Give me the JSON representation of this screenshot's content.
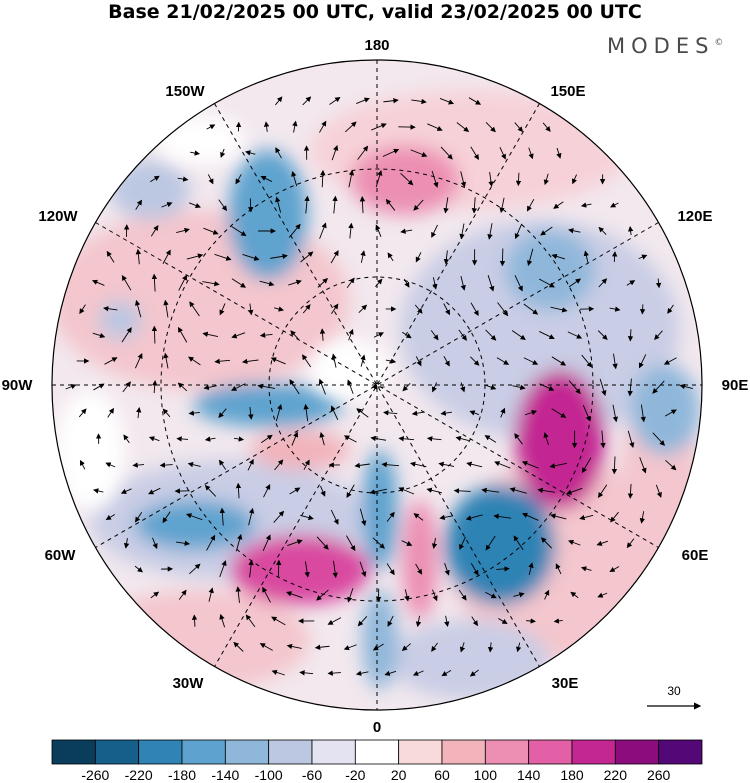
{
  "title": "Base 21/02/2025 00 UTC, valid 23/02/2025 00 UTC",
  "brand": "MODES",
  "brand_mark": "©",
  "longitude_labels": {
    "lon_180": "180",
    "lon_150E": "150E",
    "lon_120E": "120E",
    "lon_90E": "90E",
    "lon_60E": "60E",
    "lon_30E": "30E",
    "lon_0": "0",
    "lon_30W": "30W",
    "lon_60W": "60W",
    "lon_90W": "90W",
    "lon_120W": "120W",
    "lon_150W": "150W"
  },
  "reference_vector": {
    "label": "30"
  },
  "colorbar": {
    "colors": [
      "#0a3d5c",
      "#155f8a",
      "#2f83b5",
      "#5ea3cf",
      "#8fb7da",
      "#bcc7e2",
      "#e4e3f1",
      "#ffffff",
      "#f8dadb",
      "#f2b3bb",
      "#ec8fb2",
      "#e35fa6",
      "#c32892",
      "#8c0c7e",
      "#540776"
    ],
    "tick_labels": [
      "-260",
      "-220",
      "-180",
      "-140",
      "-100",
      "-60",
      "-20",
      "20",
      "60",
      "100",
      "140",
      "180",
      "220",
      "260"
    ]
  },
  "anomaly_fields": [
    {
      "value": -150,
      "color": "#5ea3cf",
      "desc": "negative"
    },
    {
      "value": 200,
      "color": "#c32892",
      "desc": "positive"
    }
  ]
}
